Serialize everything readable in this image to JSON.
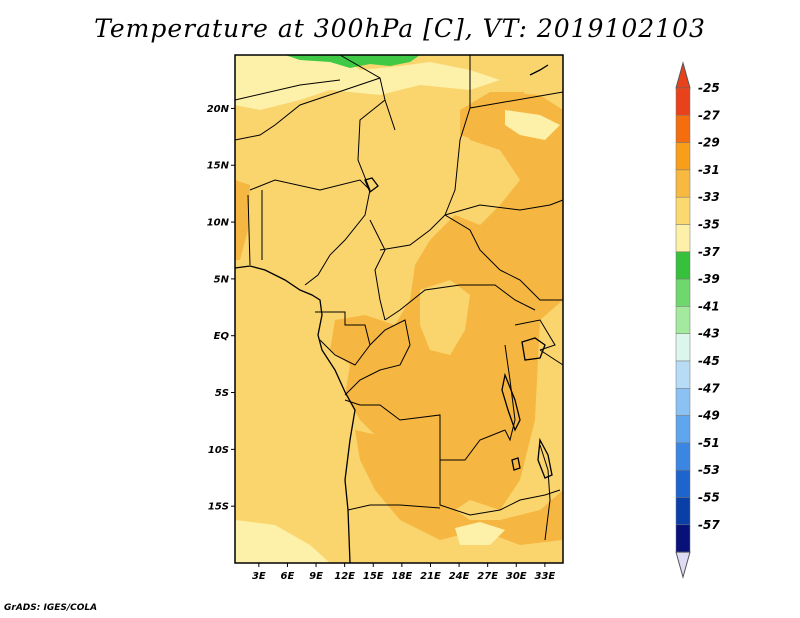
{
  "title": "Temperature at 300hPa [C], VT: 2019102103",
  "credit": "GrADS: IGES/COLA",
  "map": {
    "lon_labels": [
      "3E",
      "6E",
      "9E",
      "12E",
      "15E",
      "18E",
      "21E",
      "24E",
      "27E",
      "30E",
      "33E"
    ],
    "lat_labels": [
      "20N",
      "15N",
      "10N",
      "5N",
      "EQ",
      "5S",
      "10S",
      "15S"
    ],
    "lon_values": [
      3,
      6,
      9,
      12,
      15,
      18,
      21,
      24,
      27,
      30,
      33
    ],
    "lat_values": [
      20,
      15,
      10,
      5,
      0,
      -5,
      -10,
      -15
    ],
    "lon_range": [
      0.5,
      34.9
    ],
    "lat_range": [
      -20,
      24.7
    ],
    "fill_colors": {
      "warm_band": "#f6b742",
      "mid_band": "#fad56e",
      "cool_band": "#fdf0a8",
      "green_band": "#3fc944",
      "border": "#000000"
    }
  },
  "colorbar": {
    "labels": [
      "-25",
      "-27",
      "-29",
      "-31",
      "-33",
      "-35",
      "-37",
      "-39",
      "-41",
      "-43",
      "-45",
      "-47",
      "-49",
      "-51",
      "-53",
      "-55",
      "-57"
    ],
    "colors": [
      "#e8421c",
      "#f46d0f",
      "#f89e1a",
      "#f7b93f",
      "#fbd96f",
      "#fdf0a8",
      "#37c03c",
      "#6ed86e",
      "#a4ea9e",
      "#dcf6ee",
      "#b6dcf6",
      "#8cc2f3",
      "#5fa6ee",
      "#3a86e2",
      "#1d64cc",
      "#0a3fa8",
      "#08117a"
    ],
    "top_tip_color": "#e8421c",
    "bottom_tip_color": "#dedcf4"
  }
}
